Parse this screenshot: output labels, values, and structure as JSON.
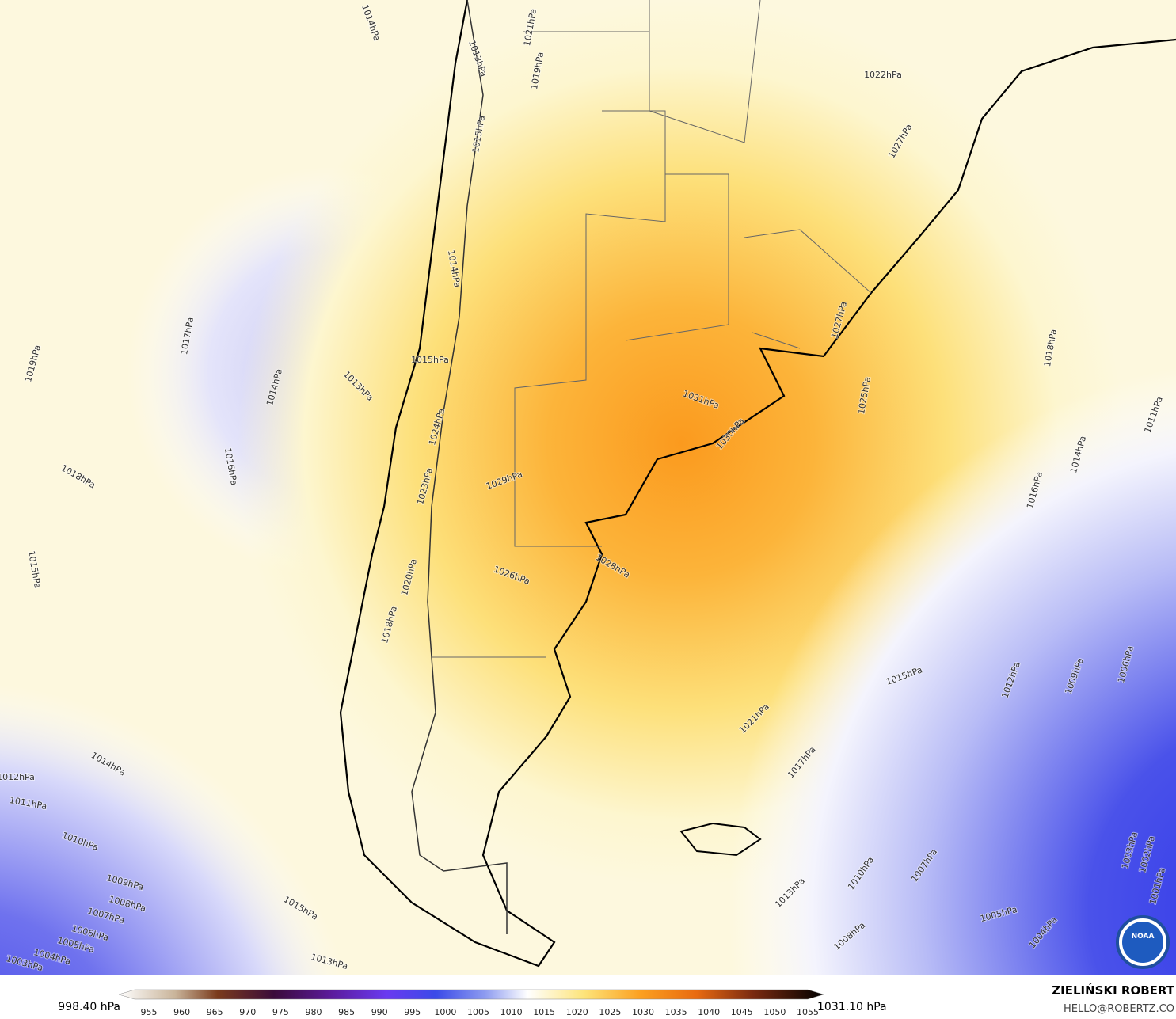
{
  "contour_labels": [
    "1014hPa",
    "1021hPa",
    "1013hPa",
    "1019hPa",
    "1015hPa",
    "1022hPa",
    "1027hPa",
    "1014hPa",
    "1019hPa",
    "1017hPa",
    "1014hPa",
    "1013hPa",
    "1015hPa",
    "1031hPa",
    "1024hPa",
    "1030hPa",
    "1025hPa",
    "1018hPa",
    "1011hPa",
    "1016hPa",
    "1018hPa",
    "1023hPa",
    "1029hPa",
    "1014hPa",
    "1016hPa",
    "1015hPa",
    "1026hPa",
    "1028hPa",
    "1020hPa",
    "1027hPa",
    "1018hPa",
    "1015hPa",
    "1012hPa",
    "1009hPa",
    "1006hPa",
    "1021hPa",
    "1017hPa",
    "1014hPa",
    "1012hPa",
    "1011hPa",
    "1010hPa",
    "1013hPa",
    "1010hPa",
    "1007hPa",
    "1003hPa",
    "1002hPa",
    "1009hPa",
    "1008hPa",
    "1007hPa",
    "1006hPa",
    "1005hPa",
    "1004hPa",
    "1003hPa",
    "1015hPa",
    "1013hPa",
    "1008hPa",
    "1005hPa",
    "1004hPa",
    "1001hPa"
  ],
  "colorbar": {
    "min_label": "998.40 hPa",
    "max_label": "1031.10 hPa",
    "ticks": [
      "955",
      "960",
      "965",
      "970",
      "975",
      "980",
      "985",
      "990",
      "995",
      "1000",
      "1005",
      "1010",
      "1015",
      "1020",
      "1025",
      "1030",
      "1035",
      "1040",
      "1045",
      "1050",
      "1055"
    ]
  },
  "credit": {
    "name": "ZIELIŃSKI ROBERT",
    "email": "HELLO@ROBERTZ.CO"
  },
  "logo": "NOAA"
}
